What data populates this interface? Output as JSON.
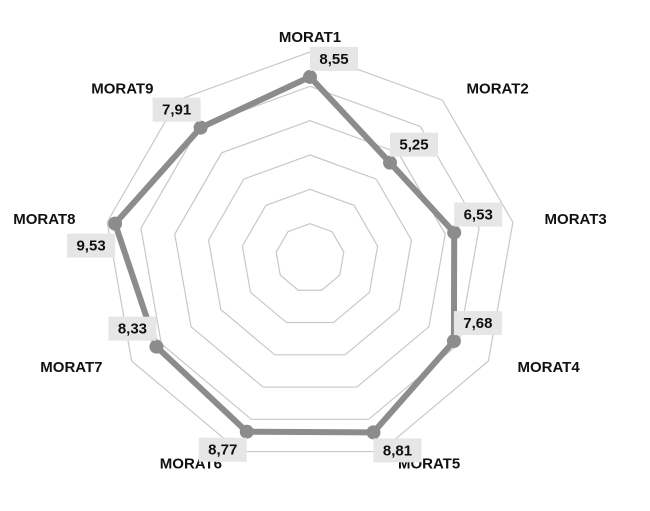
{
  "chart_data": {
    "type": "radar",
    "categories": [
      "MORAT1",
      "MORAT2",
      "MORAT3",
      "MORAT4",
      "MORAT5",
      "MORAT6",
      "MORAT7",
      "MORAT8",
      "MORAT9"
    ],
    "values": [
      8.55,
      5.25,
      6.53,
      7.68,
      8.81,
      8.77,
      8.33,
      9.53,
      7.91
    ],
    "value_labels": [
      "8,55",
      "5,25",
      "6,53",
      "7,68",
      "8,81",
      "8,77",
      "8,33",
      "9,53",
      "7,91"
    ],
    "color": "#8c8c8c",
    "ylim": [
      -2,
      10
    ],
    "yticks": [
      0,
      2,
      4,
      6,
      8,
      10
    ],
    "grid": true
  }
}
